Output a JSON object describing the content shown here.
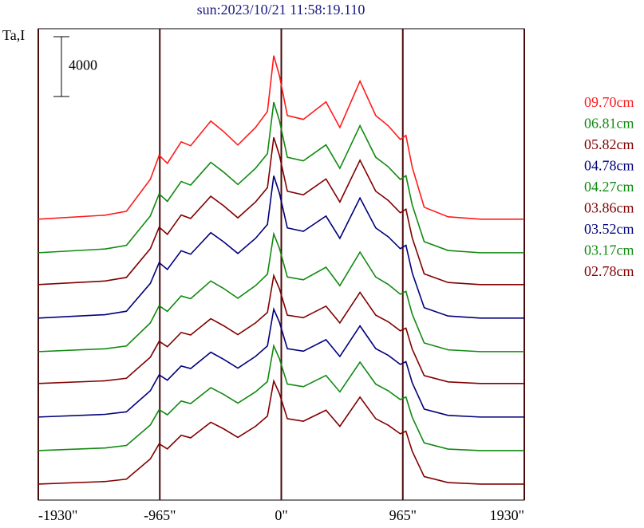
{
  "chart_data": {
    "type": "line",
    "title": "sun:2023/10/21 11:58:19.110",
    "y_label": "Ta,I",
    "scale_bar": 4000,
    "x": [
      -1930,
      -1400,
      -1230,
      -1040,
      -970,
      -905,
      -795,
      -720,
      -560,
      -460,
      -345,
      -205,
      -110,
      -60,
      -15,
      48,
      175,
      355,
      465,
      625,
      750,
      850,
      945,
      990,
      1040,
      1135,
      1325,
      1580,
      1930
    ],
    "xlim": [
      -1930,
      1930
    ],
    "xticks": [
      {
        "value": -1930,
        "label": "-1930\""
      },
      {
        "value": -965,
        "label": "-965\""
      },
      {
        "value": 0,
        "label": "0\""
      },
      {
        "value": 965,
        "label": "965\""
      },
      {
        "value": 1930,
        "label": "1930\""
      }
    ],
    "ylim": [
      0,
      31500
    ],
    "grid": true,
    "series": [
      {
        "name": "09.70cm",
        "color": "#ff1a1a",
        "values": [
          18770,
          19040,
          19300,
          21440,
          23040,
          22500,
          23940,
          23680,
          25330,
          24640,
          23730,
          24900,
          25970,
          29700,
          28370,
          25700,
          25440,
          26610,
          24900,
          28000,
          25700,
          25010,
          24100,
          24370,
          22240,
          19570,
          18930,
          18770,
          18770
        ]
      },
      {
        "name": "06.81cm",
        "color": "#108a10",
        "values": [
          16530,
          16780,
          17020,
          18990,
          20460,
          19960,
          21290,
          21050,
          22570,
          21930,
          21090,
          22170,
          23150,
          26590,
          25360,
          22910,
          22670,
          23740,
          22170,
          25020,
          22910,
          22270,
          21430,
          21680,
          19720,
          17270,
          16680,
          16530,
          16530
        ]
      },
      {
        "name": "05.82cm",
        "color": "#800000",
        "values": [
          14400,
          14640,
          14880,
          16800,
          18240,
          17760,
          19050,
          18820,
          20300,
          19680,
          18860,
          19920,
          20880,
          24240,
          23040,
          20640,
          20400,
          21460,
          19920,
          22710,
          20640,
          20020,
          19200,
          19440,
          17520,
          15120,
          14540,
          14400,
          14400
        ]
      },
      {
        "name": "04.78cm",
        "color": "#00007a",
        "values": [
          12160,
          12390,
          12620,
          14480,
          15870,
          15410,
          16660,
          16430,
          17870,
          17270,
          16480,
          17490,
          18420,
          21670,
          20510,
          18190,
          17960,
          18980,
          17490,
          20190,
          18190,
          17590,
          16800,
          17030,
          15180,
          12860,
          12300,
          12160,
          12160
        ]
      },
      {
        "name": "04.27cm",
        "color": "#108a10",
        "values": [
          9920,
          10110,
          10300,
          11840,
          12990,
          12610,
          13640,
          13460,
          14640,
          14150,
          13490,
          14330,
          15100,
          17790,
          16830,
          14910,
          14720,
          15560,
          14330,
          16570,
          14910,
          14410,
          13760,
          13950,
          12420,
          10500,
          10040,
          9920,
          9920
        ]
      },
      {
        "name": "03.86cm",
        "color": "#800000",
        "values": [
          7790,
          7970,
          8140,
          9550,
          10610,
          10250,
          11200,
          11030,
          12120,
          11660,
          11060,
          11840,
          12540,
          15000,
          14130,
          12360,
          12190,
          12960,
          11840,
          13880,
          12360,
          11910,
          11310,
          11490,
          10080,
          8320,
          7900,
          7790,
          7790
        ]
      },
      {
        "name": "03.52cm",
        "color": "#00007a",
        "values": [
          5550,
          5730,
          5900,
          7310,
          8370,
          8010,
          8960,
          8790,
          9880,
          9420,
          8820,
          9600,
          10300,
          12760,
          11890,
          10120,
          9950,
          10720,
          9600,
          11640,
          10120,
          9670,
          9070,
          9250,
          7840,
          6080,
          5660,
          5550,
          5550
        ]
      },
      {
        "name": "03.17cm",
        "color": "#108a10",
        "values": [
          3310,
          3480,
          3650,
          5020,
          6040,
          5700,
          6620,
          6450,
          7510,
          7070,
          6480,
          7230,
          7920,
          10310,
          9450,
          7750,
          7580,
          8330,
          7230,
          9220,
          7750,
          7300,
          6720,
          6890,
          5530,
          3820,
          3410,
          3310,
          3310
        ]
      },
      {
        "name": "02.78cm",
        "color": "#800000",
        "values": [
          1070,
          1240,
          1400,
          2750,
          3760,
          3420,
          4330,
          4160,
          5200,
          4770,
          4190,
          4930,
          5610,
          7960,
          7120,
          5440,
          5270,
          6010,
          4930,
          6880,
          5440,
          5000,
          4430,
          4600,
          3260,
          1570,
          1170,
          1070,
          1070
        ]
      }
    ]
  }
}
